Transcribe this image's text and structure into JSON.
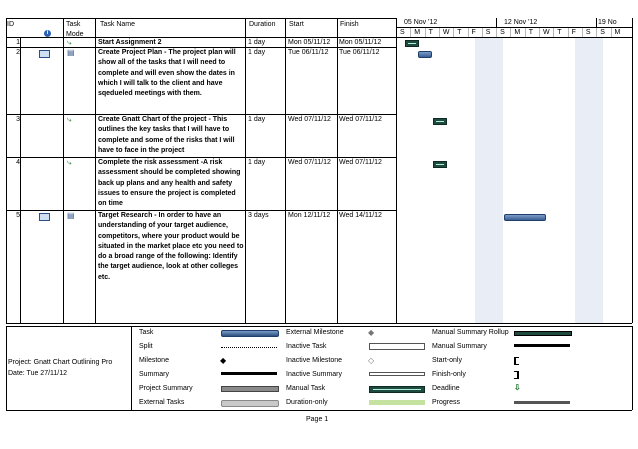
{
  "header": {
    "id": "ID",
    "info_icon": "info-icon",
    "task_mode": "Task Mode",
    "task_name": "Task Name",
    "duration": "Duration",
    "start": "Start",
    "finish": "Finish"
  },
  "timescale": {
    "weeks": [
      "05 Nov '12",
      "12 Nov '12",
      "19 No"
    ],
    "days": [
      "S",
      "M",
      "T",
      "W",
      "T",
      "F",
      "S",
      "S",
      "M",
      "T",
      "W",
      "T",
      "F",
      "S",
      "S",
      "M"
    ]
  },
  "tasks": [
    {
      "id": "1",
      "mode_icon": "pin-icon",
      "name": "Start Assignment 2",
      "duration": "1 day",
      "start": "Mon 05/11/12",
      "finish": "Mon 05/11/12"
    },
    {
      "id": "2",
      "mode_icon": "auto-schedule-icon",
      "name": "Create Project Plan - The project plan will show all of the tasks that I will need to complete and will even show the dates in which I will talk to the client and have sqedueled meetings with them.",
      "duration": "1 day",
      "start": "Tue 06/11/12",
      "finish": "Tue 06/11/12"
    },
    {
      "id": "3",
      "mode_icon": "pin-icon",
      "name": "Create Gnatt Chart of the project - This outlines the key tasks that I will have to complete and some of the risks that I will have to face in the project",
      "duration": "1 day",
      "start": "Wed 07/11/12",
      "finish": "Wed 07/11/12"
    },
    {
      "id": "4",
      "mode_icon": "pin-icon",
      "name": "Complete the risk assessment -A risk assessment should be completed showing back up plans and any health and safety issues to ensure the project is completed on time",
      "duration": "1 day",
      "start": "Wed 07/11/12",
      "finish": "Wed 07/11/12"
    },
    {
      "id": "5",
      "mode_icon": "auto-schedule-icon",
      "name": "Target Research - In order to have an understanding of your target audience, competitors, where your product would be situated in the market place etc you need to do a broad range of the following: Identify the target audience, look at other colleges etc.",
      "duration": "3 days",
      "start": "Mon 12/11/12",
      "finish": "Wed 14/11/12"
    }
  ],
  "project_info": {
    "project": "Project: Gnatt Chart Outlining Pro",
    "date": "Date: Tue 27/11/12"
  },
  "legend": {
    "col1": [
      "Task",
      "Split",
      "Milestone",
      "Summary",
      "Project Summary",
      "External Tasks"
    ],
    "col2": [
      "External Milestone",
      "Inactive Task",
      "Inactive Milestone",
      "Inactive Summary",
      "Manual Task",
      "Duration-only"
    ],
    "col3": [
      "Manual Summary Rollup",
      "Manual Summary",
      "Start-only",
      "Finish-only",
      "Deadline",
      "Progress"
    ]
  },
  "footer": {
    "page": "Page 1"
  },
  "colors": {
    "task_bar": "#4f76a8",
    "grid": "#000000",
    "weekend_shade": "#e8edf6",
    "duration_only": "#c6e2a0"
  }
}
